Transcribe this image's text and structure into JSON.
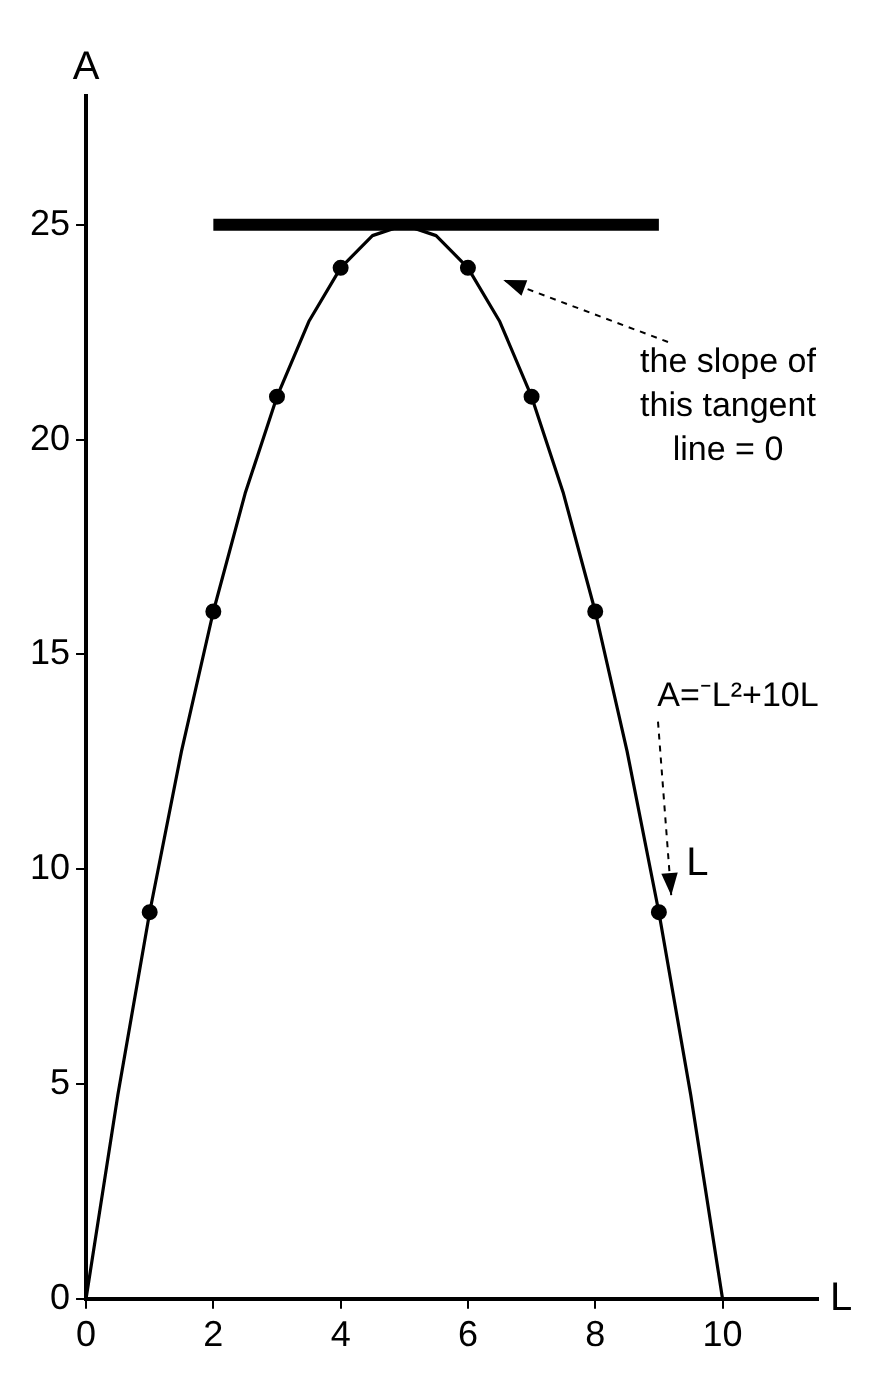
{
  "chart_data": {
    "type": "line",
    "xlabel": "L",
    "ylabel": "A",
    "series": [
      {
        "color": "#000000",
        "marker": "none",
        "x": [
          0,
          0.5,
          1,
          1.5,
          2,
          2.5,
          3,
          3.5,
          4,
          4.5,
          5,
          5.5,
          6,
          6.5,
          7,
          7.5,
          8,
          8.5,
          9,
          9.5,
          10
        ],
        "values": [
          0,
          4.75,
          9,
          12.75,
          16,
          18.75,
          21,
          22.75,
          24,
          24.75,
          25,
          24.75,
          24,
          22.75,
          21,
          18.75,
          16,
          12.75,
          9,
          4.75,
          0
        ]
      },
      {
        "type": "scatter",
        "color": "#000000",
        "marker": "circle",
        "x": [
          1,
          2,
          3,
          4,
          6,
          7,
          8,
          9
        ],
        "values": [
          9,
          16,
          21,
          24,
          24,
          21,
          16,
          9
        ]
      },
      {
        "color": "#000000",
        "marker": "none",
        "x": [
          2,
          9
        ],
        "values": [
          25,
          25
        ]
      }
    ],
    "xlim": [
      0,
      11.5
    ],
    "ylim": [
      0,
      28
    ],
    "xticks": [
      0,
      2,
      4,
      6,
      8,
      10
    ],
    "yticks": [
      0,
      5,
      10,
      15,
      20,
      25
    ],
    "grid": false,
    "legend": false,
    "annotations": [
      "the slope of this tangent line = 0",
      {
        "text": "A=⁻L²+10L",
        "x": 9.1,
        "y": 9.2
      },
      "L"
    ]
  }
}
